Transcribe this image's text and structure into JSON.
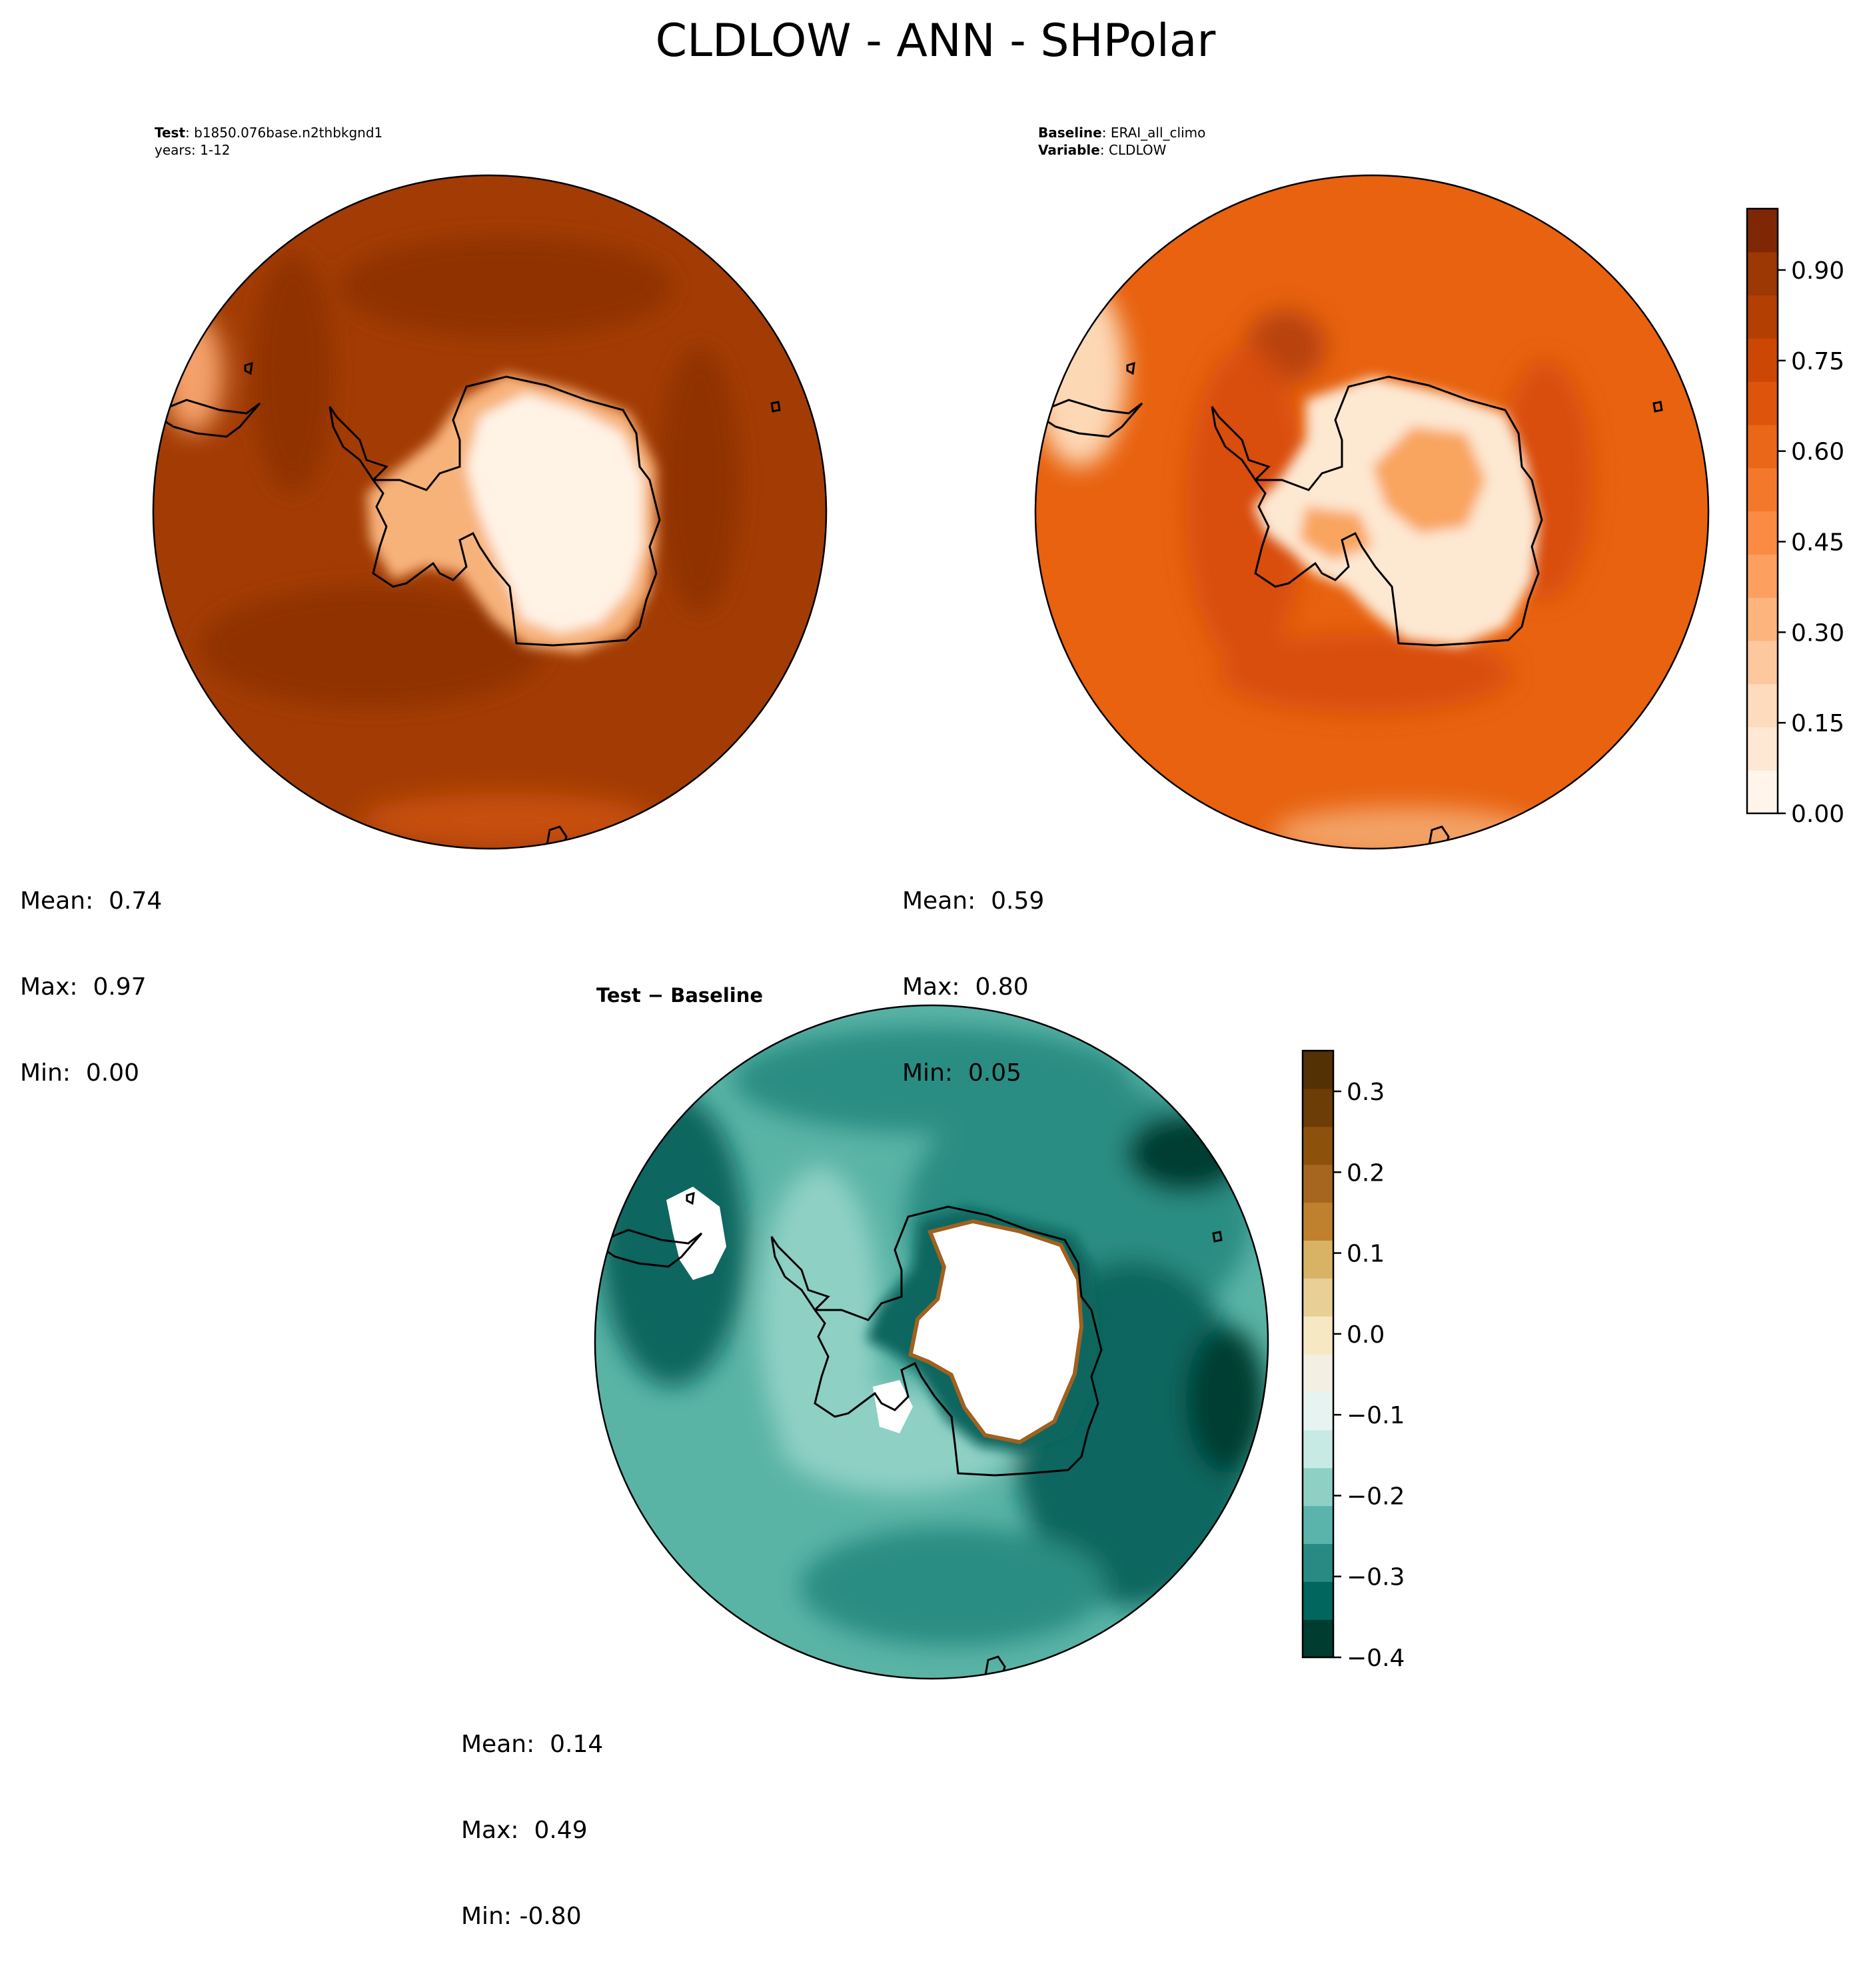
{
  "title": "CLDLOW - ANN - SHPolar",
  "test_panel": {
    "label_key": "Test",
    "label_value": "b1850.076base.n2thbkgnd1",
    "years": "years: 1-12",
    "stats": {
      "mean": "Mean:  0.74",
      "max": "Max:  0.97",
      "min": "Min:  0.00"
    },
    "colors": {
      "ocean": "#a33c04",
      "ocean_dark": "#8f3205",
      "land_interior": "#fff3e6",
      "land_ring": "#f7b27a"
    }
  },
  "baseline_panel": {
    "label_key": "Baseline",
    "label_value": "ERAI_all_climo",
    "variable_key": "Variable",
    "variable_value": "CLDLOW",
    "stats": {
      "mean": "Mean:  0.59",
      "max": "Max:  0.80",
      "min": "Min:  0.05"
    },
    "colors": {
      "ocean": "#e8620f",
      "ocean_dark": "#d94d08",
      "land_interior": "#fde8d2",
      "land_ring": "#f9a45f"
    }
  },
  "diff_panel": {
    "title": "Test − Baseline",
    "stats": {
      "mean": "Mean:  0.14",
      "max": "Max:  0.49",
      "min": "Min: -0.80"
    },
    "colors": {
      "ocean": "#5ab4a6",
      "ocean_dark": "#2a8d83",
      "ocean_darker": "#07665e",
      "land_interior": "#ffffff",
      "edge": "#a0611f"
    }
  },
  "colorbar_main": {
    "ticks": [
      "0.00",
      "0.15",
      "0.30",
      "0.45",
      "0.60",
      "0.75",
      "0.90"
    ],
    "colors": [
      "#fff5eb",
      "#fee8d4",
      "#fedbbc",
      "#fdc89d",
      "#fdb47d",
      "#fd9f5e",
      "#fb8a43",
      "#f4782c",
      "#ea6618",
      "#de540c",
      "#cc4704",
      "#b33f03",
      "#9b3803",
      "#7f2704"
    ]
  },
  "colorbar_diff": {
    "ticks": [
      "0.3",
      "0.2",
      "0.1",
      "0.0",
      "−0.1",
      "−0.2",
      "−0.3",
      "−0.4"
    ],
    "colors": [
      "#003c30",
      "#01665e",
      "#288a82",
      "#5ab4ac",
      "#8fd0c5",
      "#c7eae5",
      "#e6f3f1",
      "#f4efe3",
      "#f6e8c3",
      "#e8cf96",
      "#d8b365",
      "#bf812d",
      "#a6661f",
      "#8c510a",
      "#6d3d08",
      "#543005"
    ]
  }
}
